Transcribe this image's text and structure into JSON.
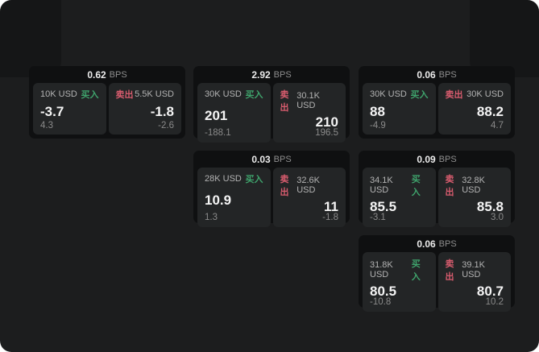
{
  "labels": {
    "buy": "买入",
    "sell": "卖出",
    "bps_unit": "BPS"
  },
  "colors": {
    "buy_green": "#3fa36c",
    "sell_red": "#d85c6e",
    "card_bg": "#0f1011",
    "panel_bg": "#232526",
    "page_bg": "#1c1d1e"
  },
  "cards": [
    {
      "row": 0,
      "col": 0,
      "bps": "0.62",
      "buy": {
        "size": "10K USD",
        "price": "-3.7",
        "delta": "4.3"
      },
      "sell": {
        "size": "5.5K USD",
        "price": "-1.8",
        "delta": "-2.6"
      }
    },
    {
      "row": 0,
      "col": 1,
      "bps": "2.92",
      "buy": {
        "size": "30K USD",
        "price": "201",
        "delta": "-188.1"
      },
      "sell": {
        "size": "30.1K USD",
        "price": "210",
        "delta": "196.5"
      }
    },
    {
      "row": 0,
      "col": 2,
      "bps": "0.06",
      "buy": {
        "size": "30K USD",
        "price": "88",
        "delta": "-4.9"
      },
      "sell": {
        "size": "30K USD",
        "price": "88.2",
        "delta": "4.7"
      }
    },
    {
      "row": 1,
      "col": 1,
      "bps": "0.03",
      "buy": {
        "size": "28K USD",
        "price": "10.9",
        "delta": "1.3"
      },
      "sell": {
        "size": "32.6K USD",
        "price": "11",
        "delta": "-1.8"
      }
    },
    {
      "row": 1,
      "col": 2,
      "bps": "0.09",
      "buy": {
        "size": "34.1K USD",
        "price": "85.5",
        "delta": "-3.1"
      },
      "sell": {
        "size": "32.8K USD",
        "price": "85.8",
        "delta": "3.0"
      }
    },
    {
      "row": 2,
      "col": 2,
      "bps": "0.06",
      "buy": {
        "size": "31.8K USD",
        "price": "80.5",
        "delta": "-10.8"
      },
      "sell": {
        "size": "39.1K USD",
        "price": "80.7",
        "delta": "10.2"
      }
    }
  ]
}
